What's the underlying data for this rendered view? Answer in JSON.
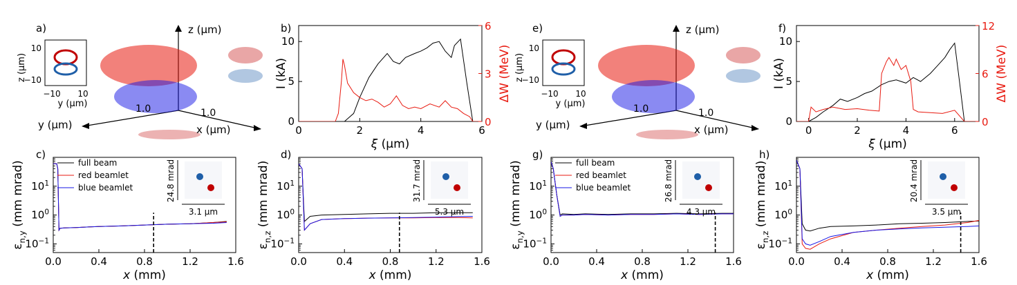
{
  "colors": {
    "black": "#000000",
    "red": "#e8190f",
    "blue": "#1515e6",
    "darkred": "#c00000",
    "darkblue": "#1f5fa8"
  },
  "chart_data": [
    {
      "panel": "a)",
      "type": "scatter",
      "axes3d": {
        "z": "z (μm)",
        "y": "y (μm)",
        "x": "x (μm)",
        "tick_y": "1.0",
        "tick_x": "1.0"
      },
      "inset": {
        "ylabel": "z (μm)",
        "xlabel": "y (μm)",
        "yticks": [
          "10",
          "−10"
        ],
        "xticks": [
          "−10",
          "10"
        ]
      }
    },
    {
      "panel": "b)",
      "type": "line",
      "xlabel": "ξ (μm)",
      "ylabel": "I (kA)",
      "ylabel_right": "ΔW (MeV)",
      "xlim": [
        0,
        6
      ],
      "ylim": [
        0,
        12
      ],
      "ylim_right": [
        0,
        6
      ],
      "xticks": [
        "0",
        "2",
        "4",
        "6"
      ],
      "yticks": [
        "0",
        "5",
        "10"
      ],
      "yticks_right": [
        "0",
        "3",
        "6"
      ],
      "series": [
        {
          "axis": "left",
          "color": "black",
          "x": [
            0,
            1.5,
            1.8,
            2.0,
            2.3,
            2.6,
            2.9,
            3.1,
            3.3,
            3.5,
            3.8,
            4.0,
            4.2,
            4.4,
            4.6,
            4.8,
            5.0,
            5.1,
            5.3,
            5.5,
            5.7,
            6.0
          ],
          "y": [
            0,
            0,
            1.0,
            3.0,
            5.5,
            7.2,
            8.5,
            7.5,
            7.2,
            8.0,
            8.5,
            8.8,
            9.2,
            9.8,
            10.0,
            8.8,
            8.0,
            9.5,
            10.3,
            5.0,
            0,
            0
          ]
        },
        {
          "axis": "right",
          "color": "red",
          "x": [
            0,
            1.2,
            1.3,
            1.4,
            1.45,
            1.5,
            1.6,
            1.8,
            2.0,
            2.2,
            2.4,
            2.6,
            2.8,
            3.0,
            3.2,
            3.4,
            3.6,
            3.8,
            4.0,
            4.3,
            4.6,
            4.8,
            5.0,
            5.2,
            5.4,
            5.6,
            5.7,
            6.0
          ],
          "y": [
            0,
            0,
            0.5,
            2.5,
            3.9,
            3.5,
            2.4,
            1.8,
            1.5,
            1.3,
            1.4,
            1.2,
            0.9,
            1.1,
            1.6,
            1.0,
            0.8,
            0.9,
            0.8,
            1.1,
            0.9,
            1.3,
            0.9,
            0.8,
            0.5,
            0.3,
            0,
            0
          ]
        }
      ]
    },
    {
      "panel": "c)",
      "type": "line",
      "xlabel": "x (mm)",
      "ylabel": "ε_{n,y} (mm mrad)",
      "xlim": [
        0,
        1.6
      ],
      "ylog": true,
      "ylim": [
        0.05,
        100
      ],
      "xticks": [
        "0.0",
        "0.4",
        "0.8",
        "1.2",
        "1.6"
      ],
      "yticks": [
        {
          "label": "10^{1}",
          "v": 10
        },
        {
          "label": "10^{0}",
          "v": 1
        },
        {
          "label": "10^{−1}",
          "v": 0.1
        }
      ],
      "legend": [
        "full beam",
        "red  beamlet",
        "blue beamlet"
      ],
      "vline": 0.88,
      "inset": {
        "vlabel": "24.8 mrad",
        "hlabel": "3.1 μm"
      },
      "series": [
        {
          "color": "black",
          "x": [
            0,
            0.03,
            0.04,
            0.05,
            0.06,
            0.1,
            0.2,
            0.4,
            0.6,
            0.8,
            1.0,
            1.2,
            1.4,
            1.52
          ],
          "y": [
            60,
            60,
            40,
            0.3,
            0.35,
            0.36,
            0.37,
            0.4,
            0.42,
            0.45,
            0.48,
            0.5,
            0.55,
            0.6
          ]
        },
        {
          "color": "red",
          "x": [
            0,
            0.03,
            0.04,
            0.05,
            0.06,
            0.1,
            0.2,
            0.4,
            0.6,
            0.8,
            1.0,
            1.2,
            1.4,
            1.52
          ],
          "y": [
            60,
            60,
            40,
            0.3,
            0.35,
            0.36,
            0.37,
            0.4,
            0.42,
            0.45,
            0.48,
            0.5,
            0.55,
            0.58
          ]
        },
        {
          "color": "blue",
          "x": [
            0,
            0.03,
            0.04,
            0.05,
            0.06,
            0.1,
            0.2,
            0.4,
            0.6,
            0.8,
            1.0,
            1.2,
            1.4,
            1.52
          ],
          "y": [
            60,
            60,
            40,
            0.3,
            0.35,
            0.36,
            0.37,
            0.4,
            0.42,
            0.45,
            0.48,
            0.5,
            0.52,
            0.55
          ]
        }
      ]
    },
    {
      "panel": "d)",
      "type": "line",
      "xlabel": "x (mm)",
      "ylabel": "ε_{n,z} (mm mrad)",
      "xlim": [
        0,
        1.6
      ],
      "ylog": true,
      "ylim": [
        0.05,
        100
      ],
      "xticks": [
        "0.0",
        "0.4",
        "0.8",
        "1.2",
        "1.6"
      ],
      "yticks": [
        {
          "label": "10^{1}",
          "v": 10
        },
        {
          "label": "10^{0}",
          "v": 1
        },
        {
          "label": "10^{−1}",
          "v": 0.1
        }
      ],
      "vline": 0.88,
      "inset": {
        "vlabel": "31.7 mrad",
        "hlabel": "5.3 μm"
      },
      "series": [
        {
          "color": "black",
          "x": [
            0,
            0.03,
            0.05,
            0.1,
            0.2,
            0.4,
            0.6,
            0.8,
            1.0,
            1.2,
            1.4,
            1.52
          ],
          "y": [
            60,
            40,
            0.6,
            0.9,
            1.0,
            1.05,
            1.1,
            1.15,
            1.15,
            1.2,
            1.2,
            1.2
          ]
        },
        {
          "color": "red",
          "x": [
            0,
            0.03,
            0.05,
            0.1,
            0.2,
            0.4,
            0.6,
            0.8,
            1.0,
            1.2,
            1.4,
            1.52
          ],
          "y": [
            60,
            40,
            0.3,
            0.5,
            0.7,
            0.75,
            0.78,
            0.8,
            0.8,
            0.82,
            0.82,
            0.8
          ]
        },
        {
          "color": "blue",
          "x": [
            0,
            0.03,
            0.05,
            0.1,
            0.2,
            0.4,
            0.6,
            0.8,
            1.0,
            1.2,
            1.4,
            1.52
          ],
          "y": [
            60,
            40,
            0.3,
            0.5,
            0.7,
            0.75,
            0.78,
            0.8,
            0.82,
            0.85,
            0.88,
            0.9
          ]
        }
      ]
    },
    {
      "panel": "e)",
      "type": "scatter",
      "axes3d": {
        "z": "z (μm)",
        "y": "y (μm)",
        "x": "x (μm)",
        "tick_y": "1.0",
        "tick_x": "1.0"
      },
      "inset": {
        "ylabel": "z (μm)",
        "xlabel": "y (μm)",
        "yticks": [
          "10",
          "−10"
        ],
        "xticks": [
          "−10",
          "10"
        ]
      }
    },
    {
      "panel": "f)",
      "type": "line",
      "xlabel": "ξ (μm)",
      "ylabel": "I (kA)",
      "ylabel_right": "ΔW (MeV)",
      "xlim": [
        -0.5,
        7
      ],
      "ylim": [
        0,
        12
      ],
      "ylim_right": [
        0,
        12
      ],
      "xticks": [
        "0",
        "2",
        "4",
        "6"
      ],
      "yticks": [
        "0",
        "5",
        "10"
      ],
      "yticks_right": [
        "0",
        "6",
        "12"
      ],
      "series": [
        {
          "axis": "left",
          "color": "black",
          "x": [
            -0.5,
            0,
            0.3,
            0.6,
            1.0,
            1.3,
            1.6,
            2.0,
            2.3,
            2.6,
            3.0,
            3.3,
            3.6,
            4.0,
            4.3,
            4.6,
            5.0,
            5.3,
            5.6,
            5.8,
            6.0,
            6.2,
            6.4,
            7.0
          ],
          "y": [
            0,
            0,
            0.5,
            1.2,
            2.0,
            2.8,
            2.5,
            3.0,
            3.5,
            3.8,
            4.6,
            5.0,
            5.2,
            4.8,
            5.5,
            5.0,
            6.0,
            7.0,
            8.0,
            9.0,
            9.8,
            5.0,
            0,
            0
          ]
        },
        {
          "axis": "right",
          "color": "red",
          "x": [
            -0.5,
            0,
            0.1,
            0.3,
            0.6,
            1.0,
            1.5,
            2.0,
            2.5,
            2.9,
            3.0,
            3.2,
            3.3,
            3.5,
            3.6,
            3.8,
            4.0,
            4.2,
            4.3,
            4.5,
            5.0,
            5.5,
            6.0,
            6.4,
            7.0
          ],
          "y": [
            0,
            0,
            1.8,
            1.2,
            1.5,
            1.8,
            1.5,
            1.6,
            1.4,
            1.3,
            6.0,
            7.5,
            8.0,
            7.0,
            7.8,
            6.5,
            7.0,
            5.0,
            1.5,
            1.2,
            1.1,
            1.0,
            1.4,
            0,
            0
          ]
        }
      ]
    },
    {
      "panel": "g)",
      "type": "line",
      "xlabel": "x (mm)",
      "ylabel": "ε_{n,y} (mm mrad)",
      "xlim": [
        0,
        1.6
      ],
      "ylog": true,
      "ylim": [
        0.05,
        100
      ],
      "xticks": [
        "0.0",
        "0.4",
        "0.8",
        "1.2",
        "1.6"
      ],
      "yticks": [
        {
          "label": "10^{1}",
          "v": 10
        },
        {
          "label": "10^{0}",
          "v": 1
        },
        {
          "label": "10^{−1}",
          "v": 0.1
        }
      ],
      "legend": [
        "full beam",
        "red  beamlet",
        "blue beamlet"
      ],
      "vline": 1.44,
      "inset": {
        "vlabel": "26.8 mrad",
        "hlabel": "4.3 μm"
      },
      "series": [
        {
          "color": "black",
          "x": [
            0,
            0.02,
            0.05,
            0.08,
            0.1,
            0.2,
            0.3,
            0.5,
            0.7,
            0.9,
            1.1,
            1.3,
            1.5,
            1.6
          ],
          "y": [
            70,
            40,
            5,
            1.0,
            1.1,
            1.05,
            1.1,
            1.05,
            1.1,
            1.1,
            1.15,
            1.1,
            1.15,
            1.15
          ]
        },
        {
          "color": "red",
          "x": [
            0,
            0.02,
            0.05,
            0.08,
            0.1,
            0.2,
            0.3,
            0.5,
            0.7,
            0.9,
            1.1,
            1.3,
            1.5,
            1.6
          ],
          "y": [
            70,
            40,
            5,
            0.9,
            1.0,
            1.0,
            1.05,
            1.0,
            1.05,
            1.05,
            1.1,
            1.05,
            1.1,
            1.1
          ]
        },
        {
          "color": "blue",
          "x": [
            0,
            0.02,
            0.05,
            0.08,
            0.1,
            0.2,
            0.3,
            0.5,
            0.7,
            0.9,
            1.1,
            1.3,
            1.5,
            1.6
          ],
          "y": [
            70,
            40,
            5,
            0.9,
            1.0,
            1.0,
            1.05,
            1.0,
            1.05,
            1.05,
            1.1,
            1.05,
            1.1,
            1.1
          ]
        }
      ]
    },
    {
      "panel": "h)",
      "type": "line",
      "xlabel": "x (mm)",
      "ylabel": "ε_{n,z} (mm mrad)",
      "xlim": [
        0,
        1.6
      ],
      "ylog": true,
      "ylim": [
        0.05,
        100
      ],
      "xticks": [
        "0.0",
        "0.4",
        "0.8",
        "1.2",
        "1.6"
      ],
      "yticks": [
        {
          "label": "10^{1}",
          "v": 10
        },
        {
          "label": "10^{0}",
          "v": 1
        },
        {
          "label": "10^{−1}",
          "v": 0.1
        }
      ],
      "vline": 1.44,
      "inset": {
        "vlabel": "20.4 mrad",
        "hlabel": "3.5 μm"
      },
      "series": [
        {
          "color": "black",
          "x": [
            0,
            0.03,
            0.05,
            0.08,
            0.12,
            0.2,
            0.3,
            0.5,
            0.7,
            0.9,
            1.1,
            1.3,
            1.5,
            1.6
          ],
          "y": [
            80,
            40,
            0.5,
            0.3,
            0.28,
            0.35,
            0.4,
            0.42,
            0.45,
            0.5,
            0.52,
            0.55,
            0.6,
            0.62
          ]
        },
        {
          "color": "red",
          "x": [
            0,
            0.03,
            0.05,
            0.08,
            0.12,
            0.2,
            0.3,
            0.5,
            0.7,
            0.9,
            1.1,
            1.3,
            1.5,
            1.6
          ],
          "y": [
            80,
            40,
            0.1,
            0.07,
            0.065,
            0.1,
            0.15,
            0.25,
            0.3,
            0.35,
            0.4,
            0.45,
            0.55,
            0.65
          ]
        },
        {
          "color": "blue",
          "x": [
            0,
            0.03,
            0.05,
            0.08,
            0.12,
            0.2,
            0.3,
            0.5,
            0.7,
            0.9,
            1.1,
            1.3,
            1.5,
            1.6
          ],
          "y": [
            80,
            40,
            0.15,
            0.1,
            0.09,
            0.12,
            0.18,
            0.25,
            0.3,
            0.33,
            0.36,
            0.38,
            0.4,
            0.42
          ]
        }
      ]
    }
  ]
}
